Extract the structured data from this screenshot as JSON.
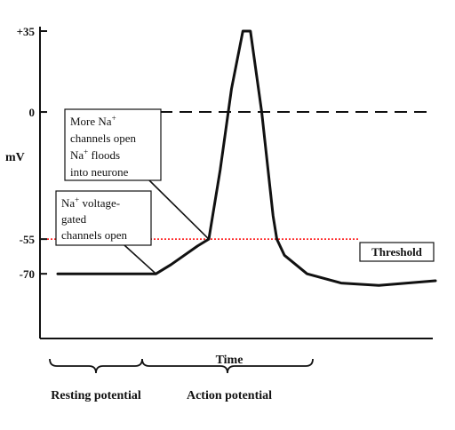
{
  "chart_data": {
    "type": "line",
    "title": "",
    "xlabel": "Time",
    "ylabel": "mV",
    "ylim": [
      -98,
      35
    ],
    "yticks": [
      {
        "value": 35,
        "label": "+35"
      },
      {
        "value": 0,
        "label": "0"
      },
      {
        "value": -55,
        "label": "-55"
      },
      {
        "value": -70,
        "label": "-70"
      }
    ],
    "grid": false,
    "series": [
      {
        "name": "",
        "points": [
          [
            0,
            -70
          ],
          [
            26,
            -70
          ],
          [
            30,
            -66
          ],
          [
            37,
            -58
          ],
          [
            40,
            -55
          ],
          [
            43,
            -25
          ],
          [
            46,
            10
          ],
          [
            49,
            35
          ],
          [
            51,
            35
          ],
          [
            54,
            0
          ],
          [
            57,
            -45
          ],
          [
            58,
            -55
          ],
          [
            60,
            -62
          ],
          [
            66,
            -70
          ],
          [
            75,
            -74
          ],
          [
            85,
            -75
          ],
          [
            100,
            -73
          ]
        ],
        "color": "#111111"
      }
    ],
    "zero_line": {
      "value": 0,
      "style": "dashed"
    },
    "threshold": {
      "value": -55,
      "label": "Threshold",
      "color": "#ff0000",
      "style": "dotted"
    },
    "annotations": [
      {
        "id": "more-na",
        "lines": [
          {
            "pre": "More Na",
            "sup": "+",
            "post": ""
          },
          {
            "pre": "channels open",
            "sup": "",
            "post": ""
          },
          {
            "pre": "Na",
            "sup": "+",
            "post": " floods"
          },
          {
            "pre": "into neurone",
            "sup": "",
            "post": ""
          }
        ],
        "target": [
          40,
          -55
        ]
      },
      {
        "id": "na-gated",
        "lines": [
          {
            "pre": "Na",
            "sup": "+",
            "post": " voltage-"
          },
          {
            "pre": "gated",
            "sup": "",
            "post": ""
          },
          {
            "pre": "channels open",
            "sup": "",
            "post": ""
          }
        ],
        "target": [
          26,
          -70
        ]
      }
    ],
    "phases": [
      {
        "label": "Resting potential",
        "x_start": 0,
        "x_end": 26
      },
      {
        "label": "Action potential",
        "x_start": 26,
        "x_end": 67
      }
    ]
  },
  "colors": {
    "ink": "#111111",
    "threshold": "#ff0000",
    "background": "#ffffff"
  }
}
